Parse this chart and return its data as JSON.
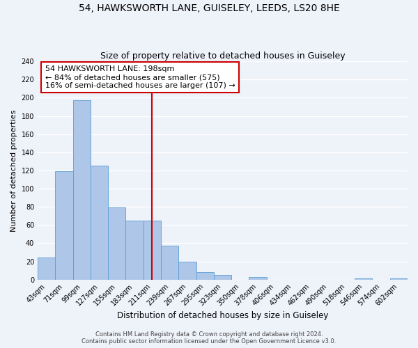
{
  "title": "54, HAWKSWORTH LANE, GUISELEY, LEEDS, LS20 8HE",
  "subtitle": "Size of property relative to detached houses in Guiseley",
  "xlabel": "Distribution of detached houses by size in Guiseley",
  "ylabel": "Number of detached properties",
  "bin_labels": [
    "43sqm",
    "71sqm",
    "99sqm",
    "127sqm",
    "155sqm",
    "183sqm",
    "211sqm",
    "239sqm",
    "267sqm",
    "295sqm",
    "323sqm",
    "350sqm",
    "378sqm",
    "406sqm",
    "434sqm",
    "462sqm",
    "490sqm",
    "518sqm",
    "546sqm",
    "574sqm",
    "602sqm"
  ],
  "bar_values": [
    24,
    119,
    197,
    125,
    79,
    65,
    65,
    37,
    20,
    8,
    5,
    0,
    3,
    0,
    0,
    0,
    0,
    0,
    1,
    0,
    1
  ],
  "bar_color": "#aec6e8",
  "bar_edge_color": "#5a9fd4",
  "vline_color": "#cc0000",
  "vline_pos": 6,
  "annotation_text": "54 HAWKSWORTH LANE: 198sqm\n← 84% of detached houses are smaller (575)\n16% of semi-detached houses are larger (107) →",
  "annotation_box_edgecolor": "#cc0000",
  "ylim": [
    0,
    240
  ],
  "yticks": [
    0,
    20,
    40,
    60,
    80,
    100,
    120,
    140,
    160,
    180,
    200,
    220,
    240
  ],
  "footer_line1": "Contains HM Land Registry data © Crown copyright and database right 2024.",
  "footer_line2": "Contains public sector information licensed under the Open Government Licence v3.0.",
  "bg_color": "#eef2f9",
  "grid_color": "#ffffff",
  "title_fontsize": 10,
  "subtitle_fontsize": 9,
  "tick_label_fontsize": 7,
  "ylabel_fontsize": 8,
  "xlabel_fontsize": 8.5,
  "annotation_fontsize": 8,
  "footer_fontsize": 6
}
